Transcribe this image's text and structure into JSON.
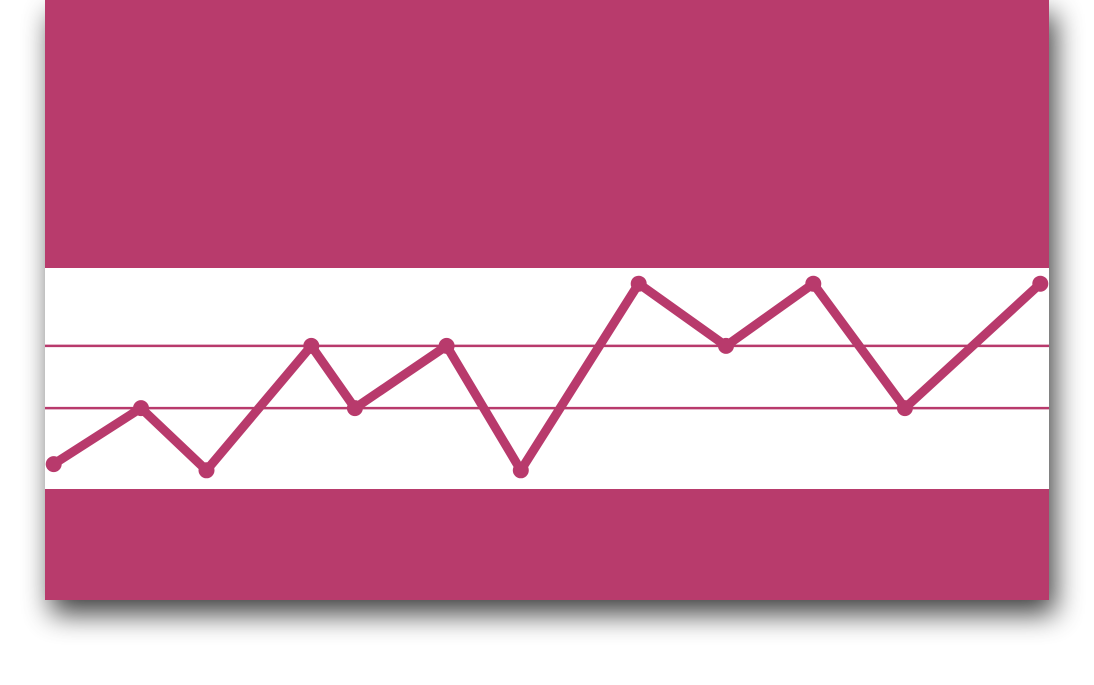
{
  "theme": {
    "accent": "#b83a6c",
    "band": "#ffffff",
    "shadow": "#000000"
  },
  "chart_data": {
    "type": "line",
    "title": "",
    "xlabel": "",
    "ylabel": "",
    "grid": true,
    "legend": "none",
    "xlim": [
      0,
      23
    ],
    "ylim": [
      -0.3,
      3.3
    ],
    "x": [
      0.2,
      2.2,
      3.7,
      6.1,
      7.1,
      9.2,
      10.9,
      13.6,
      15.6,
      17.6,
      19.7,
      22.8
    ],
    "series": [
      {
        "values": [
          0.1,
          1.0,
          0.0,
          2.0,
          1.0,
          2.0,
          0.0,
          3.0,
          2.0,
          3.0,
          1.0,
          3.0
        ]
      }
    ]
  }
}
